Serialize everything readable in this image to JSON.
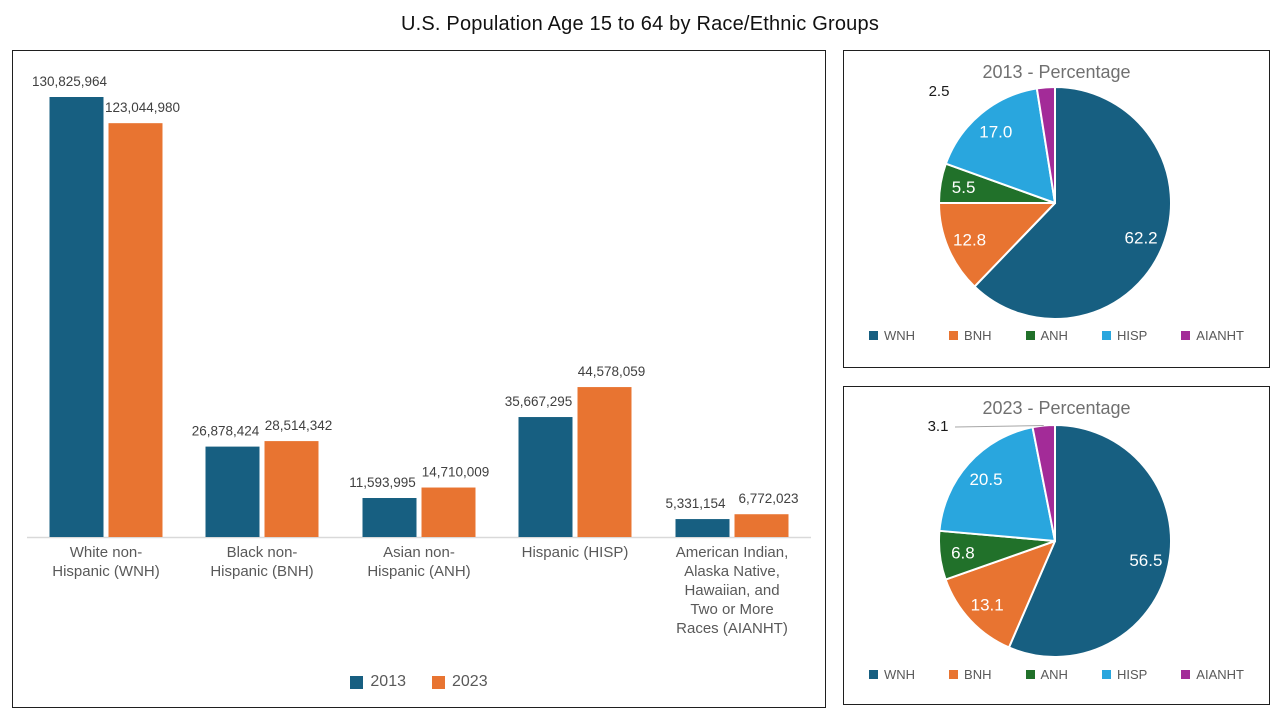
{
  "page_title": "U.S. Population Age 15 to 64 by Race/Ethnic Groups",
  "text_colors": {
    "title": "#111111",
    "value_label": "#404040",
    "category_label": "#595959",
    "pie_title": "#707070",
    "legend_text": "#595959",
    "pie_value_label": "#FFFFFF",
    "outside_label": "#1A1A1A",
    "leader_line": "#A6A6A6"
  },
  "chart_data": [
    {
      "type": "bar",
      "title": "",
      "categories": [
        "White non-Hispanic (WNH)",
        "Black non-Hispanic (BNH)",
        "Asian non-Hispanic (ANH)",
        "Hispanic (HISP)",
        "American Indian, Alaska Native, Hawaiian, and Two or More Races (AIANHT)"
      ],
      "series": [
        {
          "name": "2013",
          "color": "#175F81",
          "values": [
            130825964,
            26878424,
            11593995,
            35667295,
            5331154
          ]
        },
        {
          "name": "2023",
          "color": "#E87431",
          "values": [
            123044980,
            28514342,
            14710009,
            44578059,
            6772023
          ]
        }
      ],
      "value_labels": true,
      "ylim": [
        0,
        130825964
      ],
      "grid": false,
      "axis_color": "#D9D9D9",
      "legend_position": "bottom"
    },
    {
      "type": "pie",
      "title": "2013 - Percentage",
      "labels": [
        "WNH",
        "BNH",
        "ANH",
        "HISP",
        "AIANHT"
      ],
      "values": [
        62.2,
        12.8,
        5.5,
        17.0,
        2.5
      ],
      "colors": [
        "#175F81",
        "#E87431",
        "#21712A",
        "#29A6DE",
        "#A32B98"
      ],
      "outside_labels": [
        "AIANHT"
      ],
      "leader_line": false,
      "legend_position": "bottom"
    },
    {
      "type": "pie",
      "title": "2023 - Percentage",
      "labels": [
        "WNH",
        "BNH",
        "ANH",
        "HISP",
        "AIANHT"
      ],
      "values": [
        56.5,
        13.1,
        6.8,
        20.5,
        3.1
      ],
      "colors": [
        "#175F81",
        "#E87431",
        "#21712A",
        "#29A6DE",
        "#A32B98"
      ],
      "outside_labels": [
        "AIANHT"
      ],
      "leader_line": true,
      "legend_position": "bottom"
    }
  ]
}
